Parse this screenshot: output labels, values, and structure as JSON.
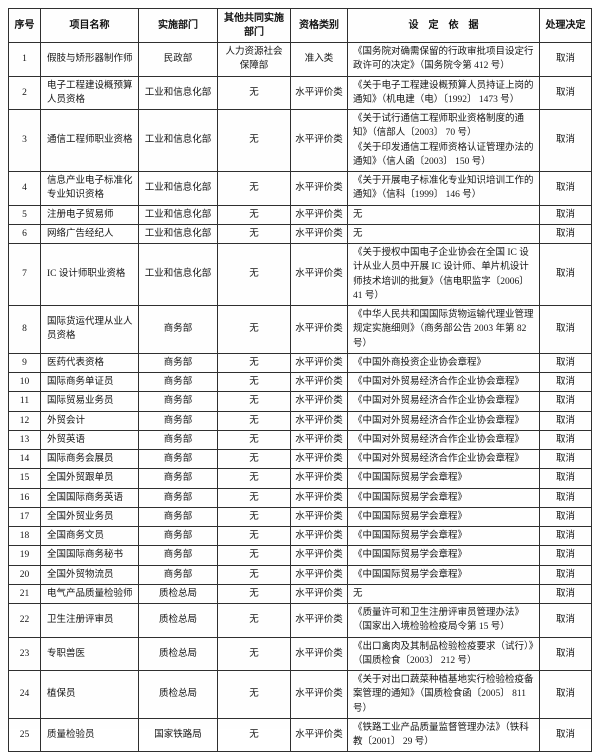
{
  "colors": {
    "page_background": "#fefefe",
    "border": "#2f2f2f",
    "text": "#141414"
  },
  "table": {
    "headers": {
      "no": "序号",
      "name": "项目名称",
      "dept": "实施部门",
      "co_dept": "其他共同实施部门",
      "category": "资格类别",
      "basis": "设　定　依　据",
      "decision": "处理决定"
    },
    "rows": [
      {
        "no": "1",
        "name": "假肢与矫形器制作师",
        "dept": "民政部",
        "co_dept": "人力资源社会保障部",
        "category": "准入类",
        "basis": [
          "《国务院对确需保留的行政审批项目设定行政许可的决定》（国务院令第 412 号）"
        ],
        "decision": "取消"
      },
      {
        "no": "2",
        "name": "电子工程建设概预算人员资格",
        "dept": "工业和信息化部",
        "co_dept": "无",
        "category": "水平评价类",
        "basis": [
          "《关于电子工程建设概预算人员持证上岗的通知》（机电建（电）〔1992〕 1473 号）"
        ],
        "decision": "取消"
      },
      {
        "no": "3",
        "name": "通信工程师职业资格",
        "dept": "工业和信息化部",
        "co_dept": "无",
        "category": "水平评价类",
        "basis": [
          "《关于试行通信工程师职业资格制度的通知》（信部人〔2003〕 70 号）",
          "《关于印发通信工程师资格认证管理办法的通知》（信人函〔2003〕 150 号）"
        ],
        "decision": "取消"
      },
      {
        "no": "4",
        "name": "信息产业电子标准化专业知识资格",
        "dept": "工业和信息化部",
        "co_dept": "无",
        "category": "水平评价类",
        "basis": [
          "《关于开展电子标准化专业知识培训工作的通知》（信科〔1999〕 146 号）"
        ],
        "decision": "取消"
      },
      {
        "no": "5",
        "name": "注册电子贸易师",
        "dept": "工业和信息化部",
        "co_dept": "无",
        "category": "水平评价类",
        "basis": [
          "无"
        ],
        "decision": "取消"
      },
      {
        "no": "6",
        "name": "网络广告经纪人",
        "dept": "工业和信息化部",
        "co_dept": "无",
        "category": "水平评价类",
        "basis": [
          "无"
        ],
        "decision": "取消"
      },
      {
        "no": "7",
        "name": "IC 设计师职业资格",
        "dept": "工业和信息化部",
        "co_dept": "无",
        "category": "水平评价类",
        "basis": [
          "《关于授权中国电子企业协会在全国 IC 设计从业人员中开展 IC 设计师、单片机设计师技术培训的批复》（信电职监字〔2006〕 41 号）"
        ],
        "decision": "取消"
      },
      {
        "no": "8",
        "name": "国际货运代理从业人员资格",
        "dept": "商务部",
        "co_dept": "无",
        "category": "水平评价类",
        "basis": [
          "《中华人民共和国国际货物运输代理业管理规定实施细则》（商务部公告 2003 年第 82 号）"
        ],
        "decision": "取消"
      },
      {
        "no": "9",
        "name": "医药代表资格",
        "dept": "商务部",
        "co_dept": "无",
        "category": "水平评价类",
        "basis": [
          "《中国外商投资企业协会章程》"
        ],
        "decision": "取消"
      },
      {
        "no": "10",
        "name": "国际商务单证员",
        "dept": "商务部",
        "co_dept": "无",
        "category": "水平评价类",
        "basis": [
          "《中国对外贸易经济合作企业协会章程》"
        ],
        "decision": "取消"
      },
      {
        "no": "11",
        "name": "国际贸易业务员",
        "dept": "商务部",
        "co_dept": "无",
        "category": "水平评价类",
        "basis": [
          "《中国对外贸易经济合作企业协会章程》"
        ],
        "decision": "取消"
      },
      {
        "no": "12",
        "name": "外贸会计",
        "dept": "商务部",
        "co_dept": "无",
        "category": "水平评价类",
        "basis": [
          "《中国对外贸易经济合作企业协会章程》"
        ],
        "decision": "取消"
      },
      {
        "no": "13",
        "name": "外贸英语",
        "dept": "商务部",
        "co_dept": "无",
        "category": "水平评价类",
        "basis": [
          "《中国对外贸易经济合作企业协会章程》"
        ],
        "decision": "取消"
      },
      {
        "no": "14",
        "name": "国际商务会展员",
        "dept": "商务部",
        "co_dept": "无",
        "category": "水平评价类",
        "basis": [
          "《中国对外贸易经济合作企业协会章程》"
        ],
        "decision": "取消"
      },
      {
        "no": "15",
        "name": "全国外贸跟单员",
        "dept": "商务部",
        "co_dept": "无",
        "category": "水平评价类",
        "basis": [
          "《中国国际贸易学会章程》"
        ],
        "decision": "取消"
      },
      {
        "no": "16",
        "name": "全国国际商务英语",
        "dept": "商务部",
        "co_dept": "无",
        "category": "水平评价类",
        "basis": [
          "《中国国际贸易学会章程》"
        ],
        "decision": "取消"
      },
      {
        "no": "17",
        "name": "全国外贸业务员",
        "dept": "商务部",
        "co_dept": "无",
        "category": "水平评价类",
        "basis": [
          "《中国国际贸易学会章程》"
        ],
        "decision": "取消"
      },
      {
        "no": "18",
        "name": "全国商务文员",
        "dept": "商务部",
        "co_dept": "无",
        "category": "水平评价类",
        "basis": [
          "《中国国际贸易学会章程》"
        ],
        "decision": "取消"
      },
      {
        "no": "19",
        "name": "全国国际商务秘书",
        "dept": "商务部",
        "co_dept": "无",
        "category": "水平评价类",
        "basis": [
          "《中国国际贸易学会章程》"
        ],
        "decision": "取消"
      },
      {
        "no": "20",
        "name": "全国外贸物流员",
        "dept": "商务部",
        "co_dept": "无",
        "category": "水平评价类",
        "basis": [
          "《中国国际贸易学会章程》"
        ],
        "decision": "取消"
      },
      {
        "no": "21",
        "name": "电气产品质量检验师",
        "dept": "质检总局",
        "co_dept": "无",
        "category": "水平评价类",
        "basis": [
          "无"
        ],
        "decision": "取消"
      },
      {
        "no": "22",
        "name": "卫生注册评审员",
        "dept": "质检总局",
        "co_dept": "无",
        "category": "水平评价类",
        "basis": [
          "《质量许可和卫生注册评审员管理办法》（国家出入境检验检疫局令第 15 号）"
        ],
        "decision": "取消"
      },
      {
        "no": "23",
        "name": "专职兽医",
        "dept": "质检总局",
        "co_dept": "无",
        "category": "水平评价类",
        "basis": [
          "《出口禽肉及其制品检验检疫要求（试行）》（国质检食〔2003〕 212 号）"
        ],
        "decision": "取消"
      },
      {
        "no": "24",
        "name": "植保员",
        "dept": "质检总局",
        "co_dept": "无",
        "category": "水平评价类",
        "basis": [
          "《关于对出口蔬菜种植基地实行检验检疫备案管理的通知》（国质检食函〔2005〕 811 号）"
        ],
        "decision": "取消"
      },
      {
        "no": "25",
        "name": "质量检验员",
        "dept": "国家铁路局",
        "co_dept": "无",
        "category": "水平评价类",
        "basis": [
          "《铁路工业产品质量监督管理办法》（铁科教〔2001〕 29 号）"
        ],
        "decision": "取消"
      }
    ]
  }
}
